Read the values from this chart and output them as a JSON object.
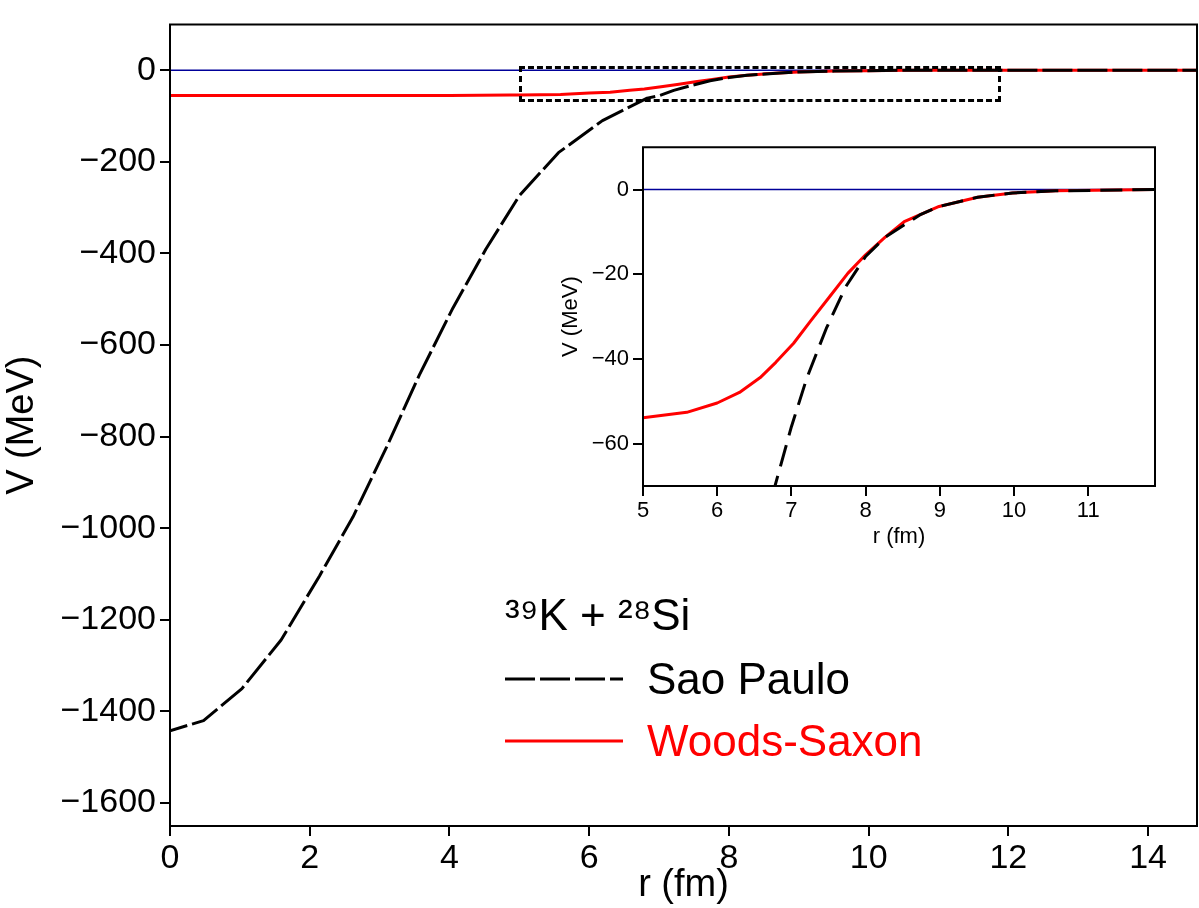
{
  "chart_data": [
    {
      "type": "line",
      "xlabel": "r (fm)",
      "ylabel": "V (MeV)",
      "legend": "bottom right",
      "legend_title": "³⁹K + ²⁸Si",
      "grid": false,
      "xlim": [
        0,
        14.7
      ],
      "ylim": [
        -1650,
        100
      ],
      "xticks": [
        0,
        2,
        4,
        6,
        8,
        10,
        12,
        14
      ],
      "yticks": [
        -1600,
        -1400,
        -1200,
        -1000,
        -800,
        -600,
        -400,
        -200,
        0
      ],
      "ref_lines": [
        {
          "axis": "y",
          "value": 0,
          "color": "#000099"
        }
      ],
      "series": [
        {
          "name": "Sao Paulo",
          "color": "#000000",
          "line_style": "dashed",
          "x": [
            0,
            0.48,
            1.03,
            1.59,
            2.14,
            2.62,
            3.1,
            3.57,
            4.05,
            4.52,
            5,
            5.56,
            6.19,
            6.83,
            7,
            7.21,
            7.47,
            7.73,
            8,
            8.26,
            8.73,
            8.99,
            9.51,
            9.98,
            10.56,
            11.9,
            13,
            14.7
          ],
          "values": [
            -1442,
            -1420,
            -1350,
            -1244,
            -1104,
            -975,
            -823,
            -665,
            -519,
            -391,
            -274,
            -180,
            -110,
            -61,
            -56,
            -44,
            -33,
            -23,
            -16,
            -11,
            -6,
            -4,
            -2,
            -1,
            0,
            0,
            0,
            0
          ]
        },
        {
          "name": "Woods-Saxon",
          "color": "#ff0000",
          "line_style": "solid",
          "x": [
            0,
            2,
            4,
            5,
            5.59,
            6,
            6.3,
            6.58,
            6.79,
            7.03,
            7.26,
            7.52,
            7.76,
            8,
            8.26,
            8.52,
            8.99,
            9.51,
            9.98,
            10.56,
            11.9,
            13,
            14.7
          ],
          "values": [
            -55,
            -55,
            -55,
            -54,
            -53,
            -50,
            -48,
            -44,
            -41,
            -36,
            -31,
            -25,
            -20,
            -15,
            -11,
            -8,
            -4,
            -2,
            -1,
            0,
            0,
            0,
            0
          ]
        }
      ]
    },
    {
      "type": "line",
      "xlabel": "r (fm)",
      "ylabel": "V (MeV)",
      "grid": false,
      "xlim": [
        5,
        11.9
      ],
      "ylim": [
        -70,
        10
      ],
      "xticks": [
        5,
        6,
        7,
        8,
        9,
        10,
        11
      ],
      "yticks": [
        -60,
        -40,
        -20,
        0
      ],
      "ref_lines": [
        {
          "axis": "y",
          "value": 0,
          "color": "#000099"
        }
      ],
      "series": [
        {
          "color": "#000000",
          "line_style": "dashed",
          "x": [
            6.78,
            7,
            7.21,
            7.47,
            7.73,
            8,
            8.26,
            8.73,
            8.99,
            9.51,
            9.98,
            10.56,
            11.9
          ],
          "values": [
            -69.9,
            -56,
            -44.4,
            -32.8,
            -23,
            -15.8,
            -11.3,
            -6,
            -4,
            -1.8,
            -0.8,
            -0.3,
            0
          ]
        },
        {
          "color": "#ff0000",
          "line_style": "solid",
          "x": [
            5,
            5.59,
            6,
            6.3,
            6.58,
            6.79,
            7.03,
            7.26,
            7.52,
            7.76,
            8,
            8.26,
            8.52,
            8.99,
            9.51,
            9.98,
            10.56,
            11.9
          ],
          "values": [
            -53.9,
            -52.6,
            -50.4,
            -47.9,
            -44.4,
            -40.8,
            -36.3,
            -31,
            -25.2,
            -19.8,
            -15.4,
            -11.3,
            -7.6,
            -4,
            -1.8,
            -0.8,
            -0.3,
            0
          ]
        }
      ]
    }
  ]
}
